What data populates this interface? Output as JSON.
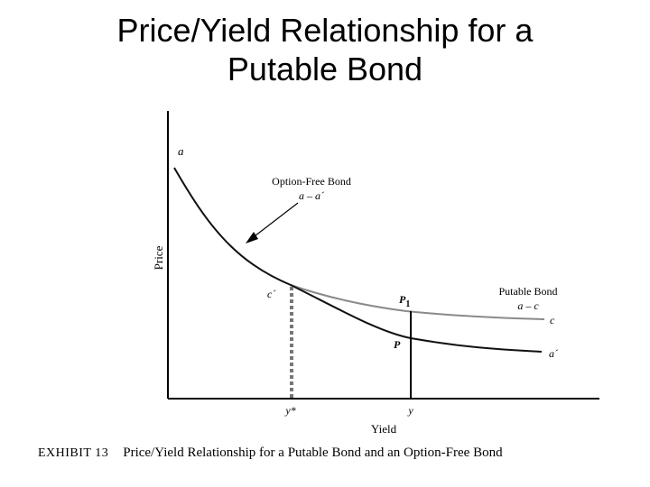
{
  "slide_title": {
    "line1": "Price/Yield Relationship for a",
    "line2": "Putable Bond"
  },
  "axes": {
    "ylabel": "Price",
    "xlabel": "Yield"
  },
  "labels": {
    "point_a": "a",
    "point_c_prime": "c´",
    "point_a_prime": "a´",
    "point_c": "c",
    "option_free_title": "Option-Free Bond",
    "option_free_range": "a – a´",
    "putable_title": "Putable Bond",
    "putable_range": "a – c",
    "p1": "P",
    "p1_sub": "1",
    "p": "P",
    "y_star": "y*",
    "y": "y"
  },
  "caption": {
    "exhibit": "EXHIBIT 13",
    "text": "Price/Yield Relationship for a Putable Bond and an Option-Free Bond"
  },
  "colors": {
    "option_free_curve": "#111111",
    "putable_curve": "#8a8a8a",
    "axis": "#000000",
    "dashed_line": "#777777"
  }
}
